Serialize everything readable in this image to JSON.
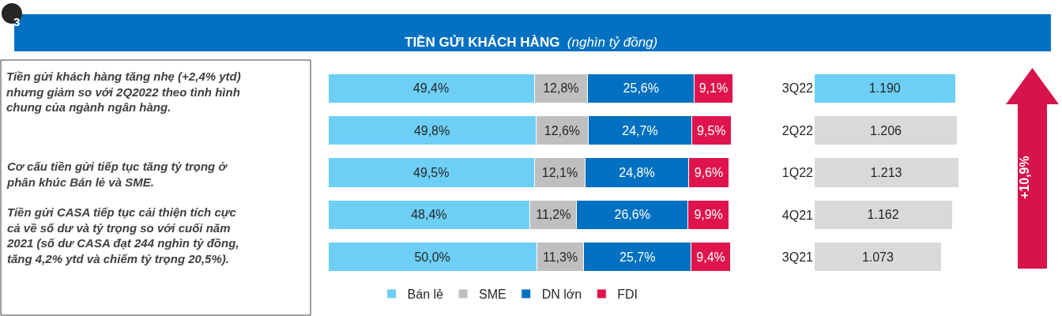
{
  "chart_data": [
    {
      "type": "bar",
      "orientation": "horizontal",
      "stacked": true,
      "title": "TIỀN GỬI KHÁCH HÀNG",
      "subtitle": "(nghìn tỷ đồng)",
      "categories": [
        null,
        null,
        null,
        null,
        null
      ],
      "tick_labels": false,
      "legend": "bottom",
      "series": [
        {
          "name": "Bán lẻ",
          "color": "#6dcff6",
          "values": [
            49.4,
            49.8,
            49.5,
            48.4,
            50.0
          ],
          "value_labels": [
            "49,4%",
            "49,8%",
            "49,5%",
            "48,4%",
            "50,0%"
          ]
        },
        {
          "name": "SME",
          "color": "#bfbfbf",
          "values": [
            12.8,
            12.6,
            12.1,
            11.2,
            11.3
          ],
          "value_labels": [
            "12,8%",
            "12,6%",
            "12,1%",
            "11,2%",
            "11,3%"
          ]
        },
        {
          "name": "DN lớn",
          "color": "#0070c0",
          "values": [
            25.6,
            24.7,
            24.8,
            26.6,
            25.7
          ],
          "value_labels": [
            "25,6%",
            "24,7%",
            "24,8%",
            "26,6%",
            "25,7%"
          ]
        },
        {
          "name": "FDI",
          "color": "#e0144c",
          "values": [
            9.1,
            9.5,
            9.6,
            9.9,
            9.4
          ],
          "value_labels": [
            "9,1%",
            "9,5%",
            "9,6%",
            "9,9%",
            "9,4%"
          ]
        }
      ],
      "annotations": [
        "3",
        "Tiền gửi khách hàng tăng nhẹ (+2,4% ytd) nhưng giảm so với 2Q2022 theo tình hình chung của ngành ngân hàng.",
        "Cơ cấu tiền gửi tiếp tục tăng tỷ trọng ở phân khúc Bán lẻ và SME.",
        "Tiền gửi CASA tiếp tục cải thiện tích cực cả về số dư và tỷ trọng so với cuối năm 2021 (số dư CASA đạt 244 nghìn tỷ đồng, tăng 4,2% ytd và chiếm tỷ trọng 20,5%)."
      ]
    },
    {
      "type": "bar",
      "orientation": "horizontal",
      "categories": [
        "3Q22",
        "2Q22",
        "1Q22",
        "4Q21",
        "3Q21"
      ],
      "values": [
        1190,
        1206,
        1213,
        1162,
        1073
      ],
      "value_labels": [
        "1.190",
        "1.206",
        "1.213",
        "1.162",
        "1.073"
      ],
      "colors": [
        "#6dcff6",
        "#d9d9d9",
        "#d9d9d9",
        "#d9d9d9",
        "#d9d9d9"
      ],
      "tick_labels": "y",
      "annotations": [
        "+10,9%"
      ]
    }
  ]
}
